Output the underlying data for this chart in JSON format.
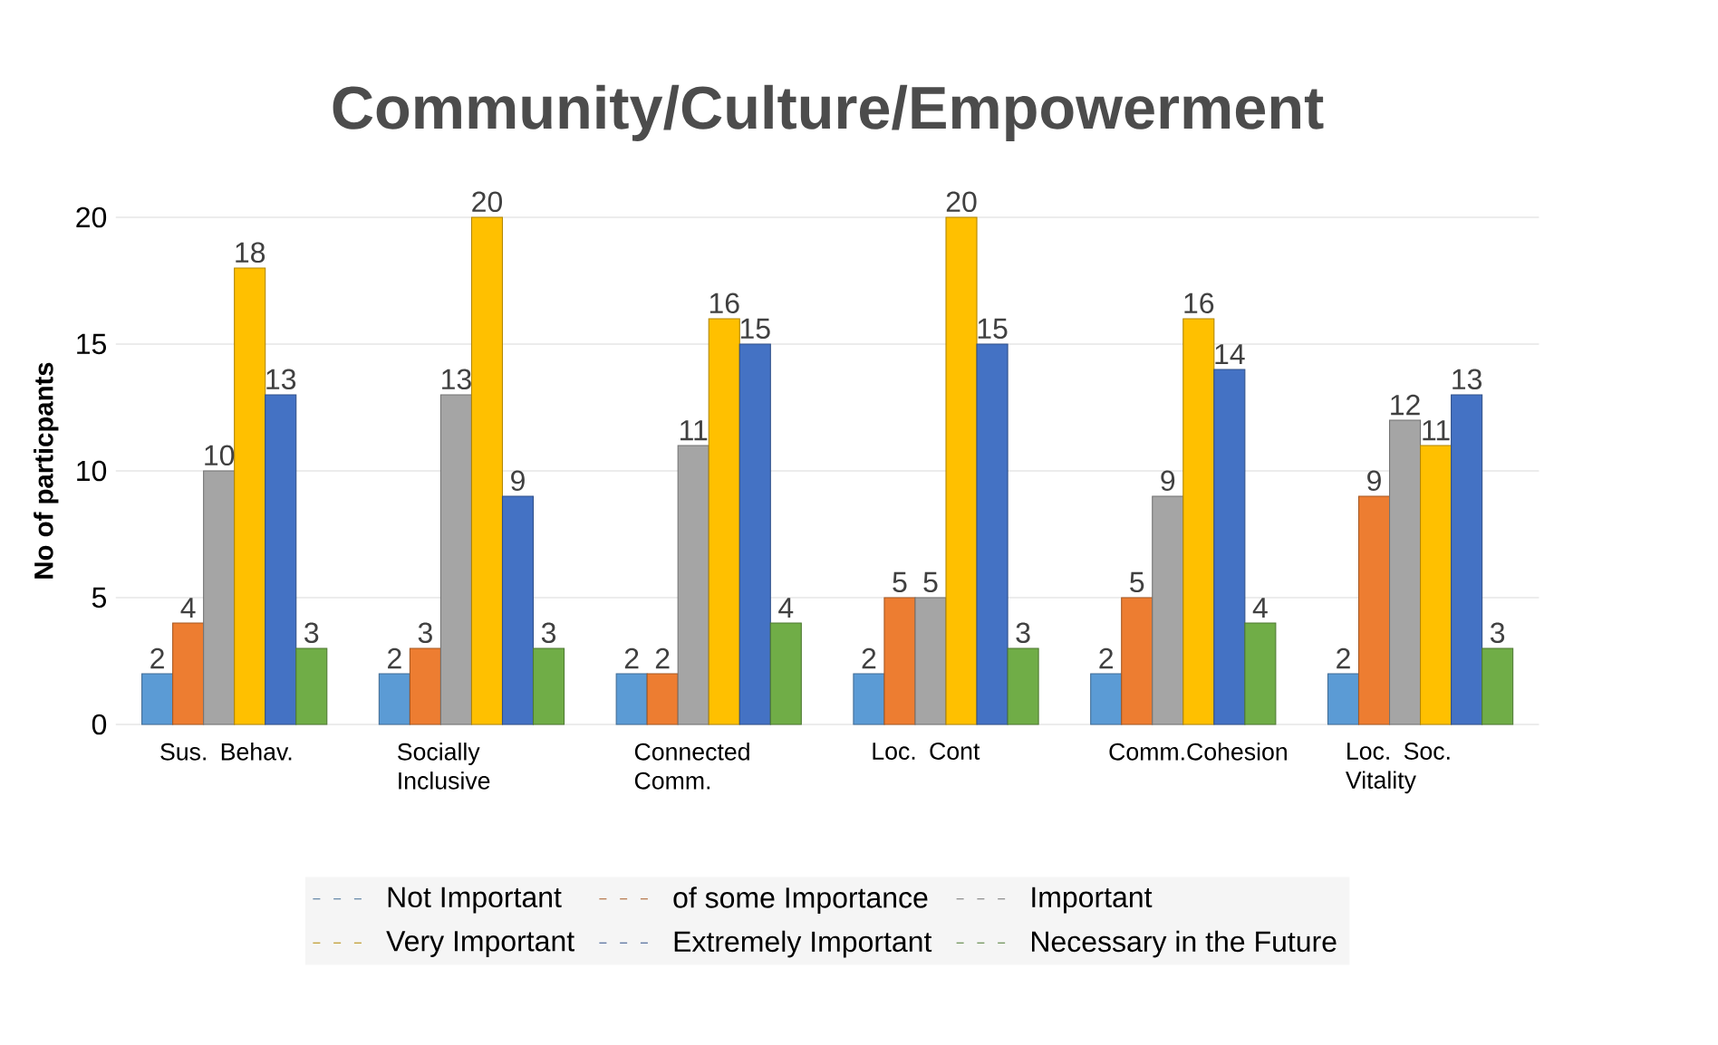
{
  "chart_data": {
    "type": "bar",
    "title": "Community/Culture/Empowerment",
    "ylabel": "No of particpants",
    "categories": [
      "Sus. Behav.",
      "Socially Inclusive",
      "Connected Comm.",
      "Loc. Cont",
      "Comm.Cohesion",
      "Loc. Soc. Vitality"
    ],
    "series": [
      {
        "name": "Not Important",
        "color": "#5b9bd5",
        "values": [
          2,
          2,
          2,
          2,
          2,
          2
        ]
      },
      {
        "name": "of some Importance",
        "color": "#ed7d31",
        "values": [
          4,
          3,
          2,
          5,
          5,
          9
        ]
      },
      {
        "name": "Important",
        "color": "#a5a5a5",
        "values": [
          10,
          13,
          11,
          5,
          9,
          12
        ]
      },
      {
        "name": "Very Important",
        "color": "#ffc000",
        "values": [
          18,
          20,
          16,
          20,
          16,
          11
        ]
      },
      {
        "name": "Extremely Important",
        "color": "#4472c4",
        "values": [
          13,
          9,
          15,
          15,
          14,
          13
        ]
      },
      {
        "name": "Necessary in the Future",
        "color": "#70ad47",
        "values": [
          3,
          3,
          4,
          3,
          4,
          3
        ]
      }
    ],
    "ylim": [
      0,
      20
    ],
    "yticks": [
      0,
      5,
      10,
      15,
      20
    ],
    "grid": "y",
    "legend": "bottom",
    "data_labels": true
  }
}
